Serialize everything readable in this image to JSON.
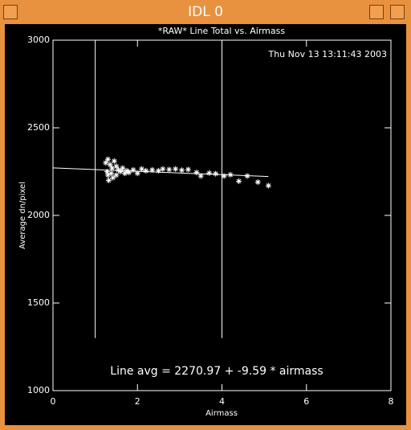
{
  "window": {
    "title": "IDL 0"
  },
  "chart_data": {
    "type": "scatter",
    "title": "*RAW* Line Total vs. Airmass",
    "xlabel": "Airmass",
    "ylabel": "Average dn/pixel",
    "date_label": "Thu Nov 13 13:11:43 2003",
    "fit_label": "Line avg = 2270.97 + -9.59 * airmass",
    "color": "#ffffff",
    "xlim": [
      0,
      8
    ],
    "xticks": [
      0,
      2,
      4,
      6,
      8
    ],
    "ylim": [
      1000,
      3000
    ],
    "yticks": [
      1000,
      1500,
      2000,
      2500,
      3000
    ],
    "x": [
      1.25,
      1.3,
      1.35,
      1.28,
      1.3,
      1.32,
      1.4,
      1.45,
      1.5,
      1.38,
      1.55,
      1.6,
      1.42,
      1.5,
      1.65,
      1.7,
      1.75,
      1.8,
      1.9,
      2.0,
      2.1,
      2.2,
      2.35,
      2.5,
      2.6,
      2.75,
      2.9,
      3.05,
      3.2,
      3.4,
      3.5,
      3.7,
      3.85,
      4.05,
      4.2,
      4.4,
      4.6,
      4.85,
      5.1
    ],
    "values": [
      2300,
      2320,
      2290,
      2250,
      2230,
      2200,
      2270,
      2310,
      2280,
      2240,
      2260,
      2250,
      2215,
      2230,
      2270,
      2240,
      2255,
      2245,
      2260,
      2240,
      2265,
      2255,
      2260,
      2255,
      2265,
      2262,
      2265,
      2258,
      2262,
      2245,
      2225,
      2242,
      2238,
      2225,
      2232,
      2195,
      2225,
      2190,
      2170
    ],
    "fit_line": {
      "x": [
        0,
        5.1
      ],
      "values": [
        2271,
        2222
      ]
    },
    "vlines": [
      {
        "x": 1,
        "ymin": 1300,
        "ymax": 3000
      },
      {
        "x": 4,
        "ymin": 1300,
        "ymax": 3000
      }
    ]
  }
}
